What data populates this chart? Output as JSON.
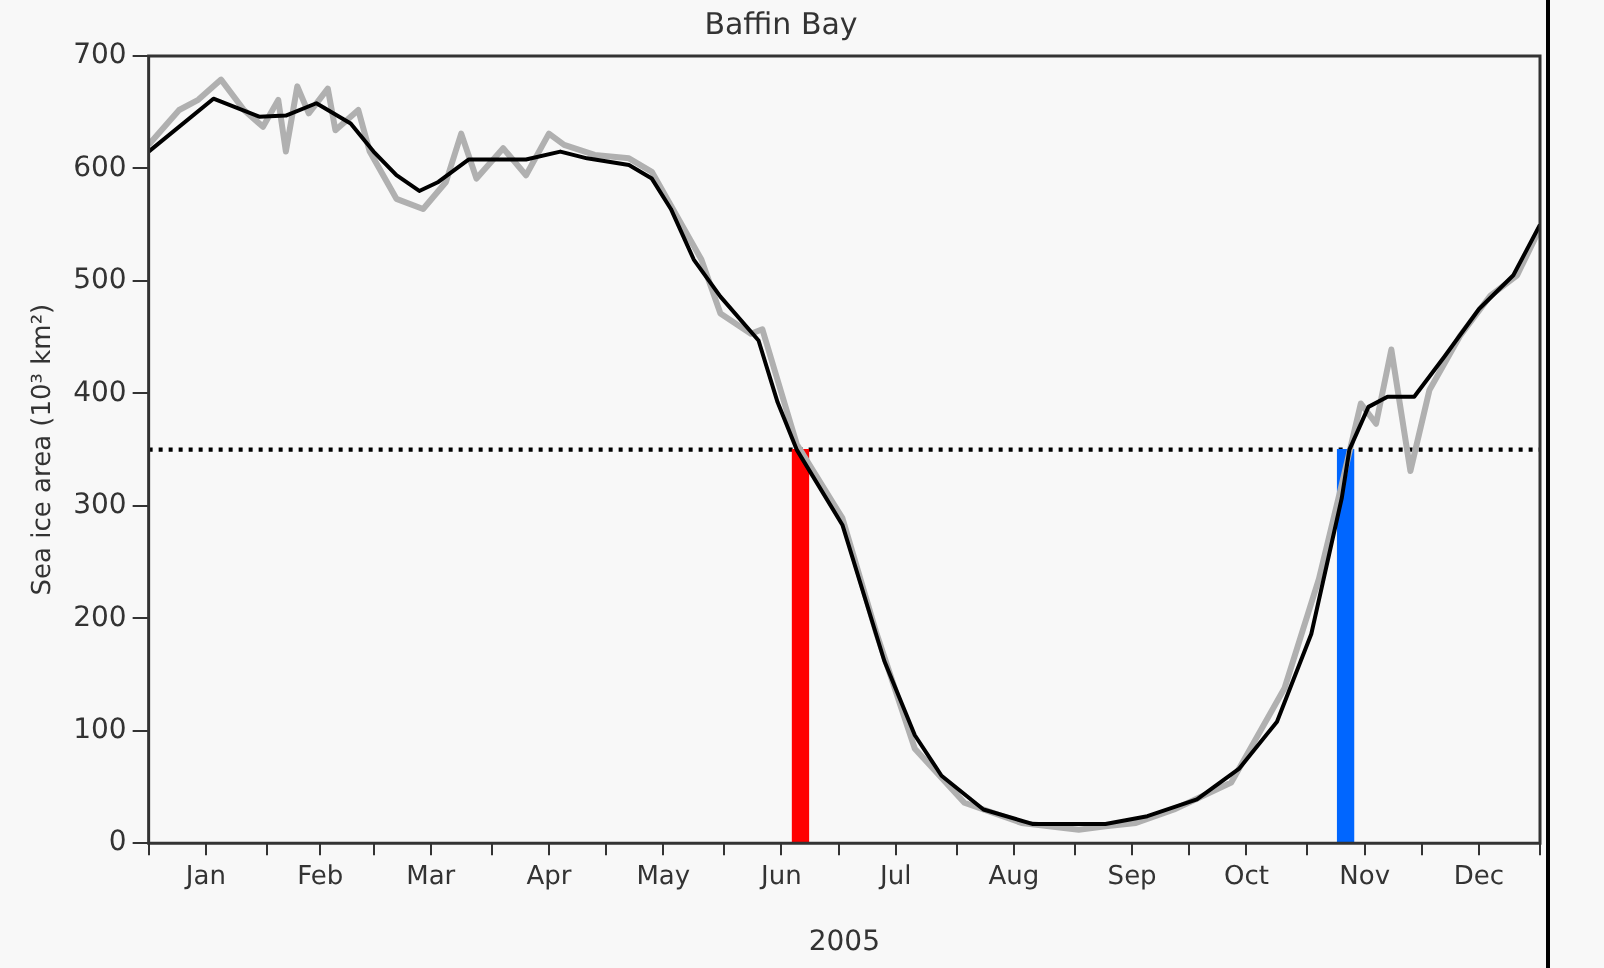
{
  "chart_data": {
    "type": "line",
    "title": "Baffin Bay",
    "xlabel": "2005",
    "ylabel": "Sea ice area (10³ km²)",
    "xlim": [
      "2005-01-01",
      "2006-01-01"
    ],
    "xticks": [
      {
        "value": "2005-01-01",
        "label": null
      },
      {
        "value": "2005-01-16",
        "label": "Jan"
      },
      {
        "value": "2005-02-01",
        "label": null
      },
      {
        "value": "2005-02-15",
        "label": "Feb"
      },
      {
        "value": "2005-03-01",
        "label": null
      },
      {
        "value": "2005-03-16",
        "label": "Mar"
      },
      {
        "value": "2005-04-01",
        "label": null
      },
      {
        "value": "2005-04-16",
        "label": "Apr"
      },
      {
        "value": "2005-05-01",
        "label": null
      },
      {
        "value": "2005-05-16",
        "label": "May"
      },
      {
        "value": "2005-06-01",
        "label": null
      },
      {
        "value": "2005-06-16",
        "label": "Jun"
      },
      {
        "value": "2005-07-01",
        "label": null
      },
      {
        "value": "2005-07-16",
        "label": "Jul"
      },
      {
        "value": "2005-08-01",
        "label": null
      },
      {
        "value": "2005-08-16",
        "label": "Aug"
      },
      {
        "value": "2005-09-01",
        "label": null
      },
      {
        "value": "2005-09-16",
        "label": "Sep"
      },
      {
        "value": "2005-10-01",
        "label": null
      },
      {
        "value": "2005-10-16",
        "label": "Oct"
      },
      {
        "value": "2005-11-01",
        "label": null
      },
      {
        "value": "2005-11-16",
        "label": "Nov"
      },
      {
        "value": "2005-12-01",
        "label": null
      },
      {
        "value": "2005-12-16",
        "label": "Dec"
      },
      {
        "value": "2006-01-01",
        "label": null
      }
    ],
    "ylim": [
      0,
      700
    ],
    "yticks": [
      0,
      100,
      200,
      300,
      400,
      500,
      600,
      700
    ],
    "grid": false,
    "legend": false,
    "marker": "none",
    "series": [
      {
        "color": "#b0b0b0",
        "x": [
          "2005-01-01",
          "2005-01-09",
          "2005-01-14",
          "2005-01-20",
          "2005-01-26",
          "2005-01-31",
          "2005-02-04",
          "2005-02-06",
          "2005-02-09",
          "2005-02-12",
          "2005-02-17",
          "2005-02-19",
          "2005-02-25",
          "2005-02-28",
          "2005-03-07",
          "2005-03-14",
          "2005-03-20",
          "2005-03-24",
          "2005-03-28",
          "2005-04-04",
          "2005-04-10",
          "2005-04-16",
          "2005-04-20",
          "2005-04-28",
          "2005-05-07",
          "2005-05-13",
          "2005-05-18",
          "2005-05-26",
          "2005-05-31",
          "2005-06-08",
          "2005-06-11",
          "2005-06-20",
          "2005-07-02",
          "2005-07-11",
          "2005-07-21",
          "2005-08-03",
          "2005-08-18",
          "2005-09-02",
          "2005-09-09",
          "2005-09-17",
          "2005-09-27",
          "2005-10-12",
          "2005-10-26",
          "2005-11-04",
          "2005-11-10",
          "2005-11-15",
          "2005-11-19",
          "2005-11-23",
          "2005-11-28",
          "2005-12-03",
          "2005-12-11",
          "2005-12-19",
          "2005-12-26",
          "2006-01-01"
        ],
        "values": [
          621,
          652,
          661,
          679,
          652,
          637,
          661,
          615,
          673,
          649,
          671,
          634,
          652,
          615,
          573,
          564,
          588,
          631,
          591,
          618,
          594,
          631,
          621,
          612,
          609,
          597,
          567,
          519,
          471,
          453,
          457,
          355,
          289,
          186,
          84,
          36,
          18,
          12,
          15,
          18,
          30,
          54,
          138,
          235,
          319,
          391,
          373,
          439,
          331,
          403,
          451,
          487,
          505,
          547
        ]
      },
      {
        "color": "#000000",
        "x": [
          "2005-01-01",
          "2005-01-18",
          "2005-01-30",
          "2005-02-06",
          "2005-02-14",
          "2005-02-23",
          "2005-03-01",
          "2005-03-07",
          "2005-03-13",
          "2005-03-18",
          "2005-03-26",
          "2005-04-10",
          "2005-04-19",
          "2005-04-26",
          "2005-05-07",
          "2005-05-13",
          "2005-05-18",
          "2005-05-24",
          "2005-05-31",
          "2005-06-10",
          "2005-06-15",
          "2005-06-20",
          "2005-07-02",
          "2005-07-13",
          "2005-07-21",
          "2005-07-28",
          "2005-08-08",
          "2005-08-21",
          "2005-09-09",
          "2005-09-20",
          "2005-10-03",
          "2005-10-14",
          "2005-10-24",
          "2005-11-02",
          "2005-11-10",
          "2005-11-12",
          "2005-11-17",
          "2005-11-22",
          "2005-11-29",
          "2005-12-07",
          "2005-12-16",
          "2005-12-25",
          "2006-01-01"
        ],
        "values": [
          615,
          662,
          646,
          647,
          658,
          640,
          615,
          594,
          580,
          588,
          608,
          608,
          615,
          609,
          603,
          591,
          564,
          519,
          486,
          447,
          392,
          350,
          283,
          162,
          96,
          60,
          30,
          17,
          17,
          24,
          39,
          66,
          108,
          186,
          307,
          350,
          388,
          397,
          397,
          433,
          475,
          505,
          550
        ]
      },
      {
        "type": "bar",
        "x": [
          "2005-06-21",
          "2005-11-11"
        ],
        "values": [
          350,
          350
        ],
        "colors": [
          "#ff0000",
          "#0066ff"
        ]
      }
    ],
    "ref_lines": [
      {
        "axis": "y",
        "value": 350,
        "color": "#000000",
        "line_style": "dotted"
      }
    ]
  }
}
